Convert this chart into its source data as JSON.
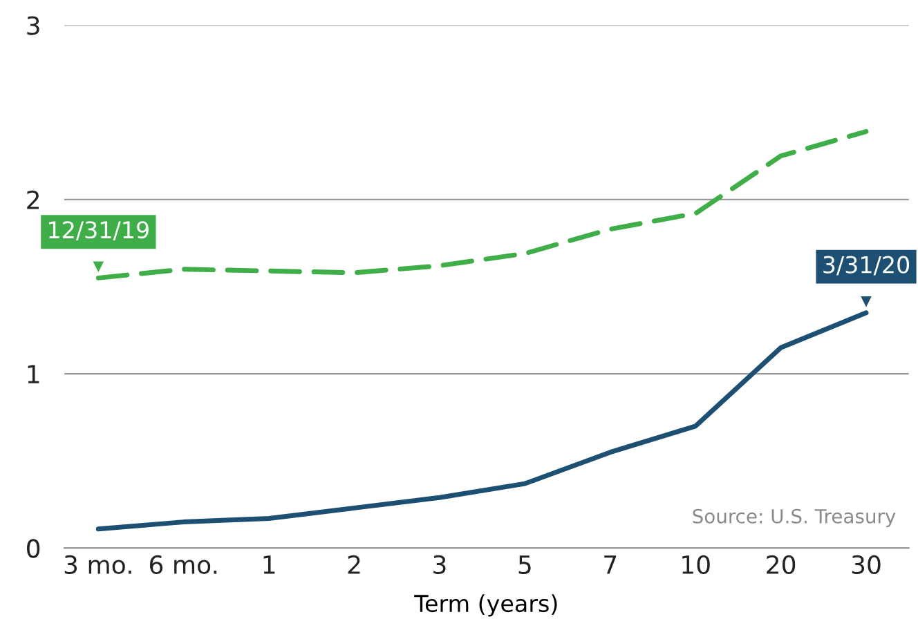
{
  "chart_data": {
    "type": "line",
    "xlabel": "Term (years)",
    "categories": [
      "3 mo.",
      "6 mo.",
      "1",
      "2",
      "3",
      "5",
      "7",
      "10",
      "20",
      "30"
    ],
    "series": [
      {
        "name": "12/31/19",
        "color": "#3fae49",
        "line_style": "dashed",
        "values": [
          1.55,
          1.6,
          1.59,
          1.58,
          1.62,
          1.69,
          1.83,
          1.92,
          2.25,
          2.39
        ]
      },
      {
        "name": "3/31/20",
        "color": "#1d4f73",
        "line_style": "solid",
        "values": [
          0.11,
          0.15,
          0.17,
          0.23,
          0.29,
          0.37,
          0.55,
          0.7,
          1.15,
          1.35
        ]
      }
    ],
    "ylim": [
      0,
      3
    ],
    "yticks": [
      0,
      1,
      2,
      3
    ],
    "grid": "y",
    "legend": false,
    "marker": "none",
    "annotations": [
      "Source: U.S. Treasury"
    ]
  }
}
